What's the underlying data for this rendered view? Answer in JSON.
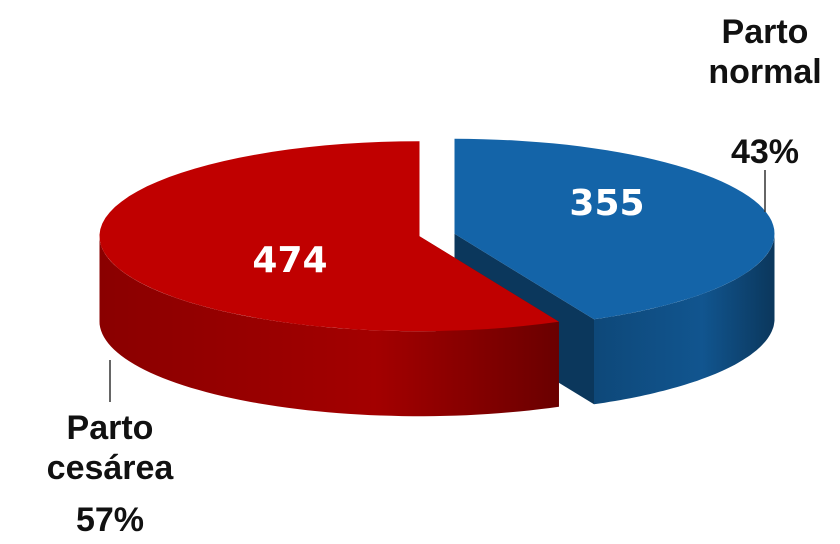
{
  "chart_data": {
    "type": "pie3d",
    "categories": [
      "Parto normal",
      "Parto cesárea"
    ],
    "values": [
      355,
      474
    ],
    "percentages": [
      43,
      57
    ],
    "percent_labels": [
      "43%",
      "57%"
    ],
    "colors": [
      "#1464a8",
      "#c00000"
    ]
  }
}
